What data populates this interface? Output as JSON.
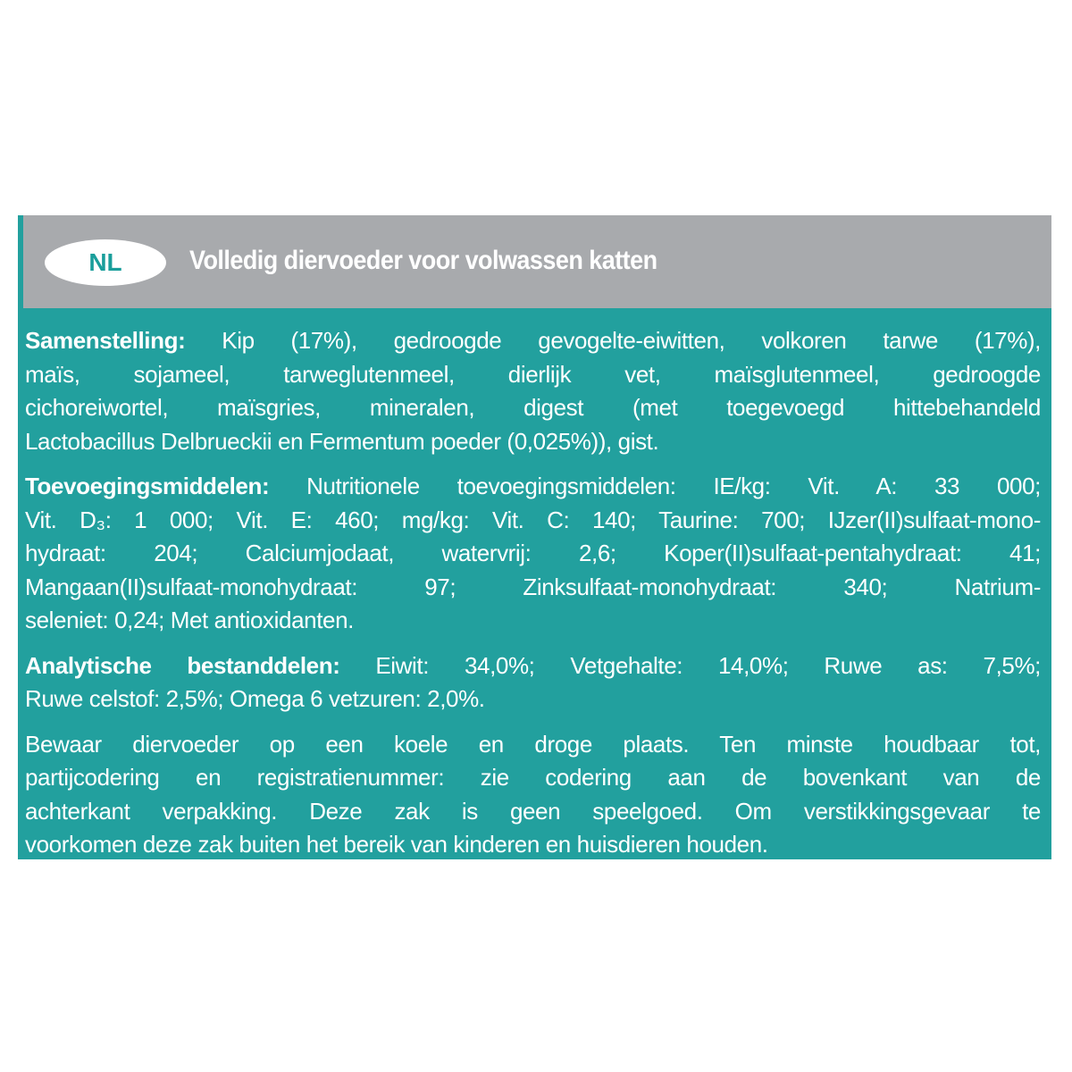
{
  "header": {
    "badge": "NL",
    "title": "Volledig diervoeder voor volwassen katten"
  },
  "colors": {
    "teal": "#22a09e",
    "gray": "#a8aaad",
    "text": "#ffffff"
  },
  "sections": [
    {
      "label": "Samenstelling:",
      "lines": [
        " Kip (17%), gedroogde gevogelte-eiwitten, volkoren tarwe (17%),",
        "maïs, sojameel, tarweglutenmeel, dierlijk vet, maïsglutenmeel, gedroogde",
        "cichoreiwortel, maïsgries, mineralen, digest (met toegevoegd hittebehandeld",
        "Lactobacillus Delbrueckii en Fermentum poeder (0,025%)), gist."
      ]
    },
    {
      "label": "Toevoegingsmiddelen:",
      "lines": [
        " Nutritionele toevoegingsmiddelen: IE/kg: Vit. A: 33 000;",
        "Vit. D₃: 1 000; Vit. E: 460; mg/kg: Vit. C: 140; Taurine: 700; IJzer(II)sulfaat-mono-",
        "hydraat: 204; Calciumjodaat, watervrij: 2,6; Koper(II)sulfaat-pentahydraat: 41;",
        "Mangaan(II)sulfaat-monohydraat: 97; Zinksulfaat-monohydraat: 340; Natrium-",
        "seleniet: 0,24; Met antioxidanten."
      ]
    },
    {
      "label": "Analytische bestanddelen:",
      "lines": [
        " Eiwit: 34,0%; Vetgehalte: 14,0%; Ruwe as: 7,5%;",
        "Ruwe celstof: 2,5%; Omega 6 vetzuren: 2,0%."
      ]
    },
    {
      "label": "",
      "lines": [
        "Bewaar diervoeder op een koele en droge plaats. Ten minste houdbaar tot,",
        "partijcodering en registratienummer: zie codering aan de bovenkant van de",
        "achterkant verpakking. Deze zak is geen speelgoed. Om verstikkingsgevaar te",
        "voorkomen deze zak buiten het bereik van kinderen en huisdieren houden."
      ]
    }
  ]
}
